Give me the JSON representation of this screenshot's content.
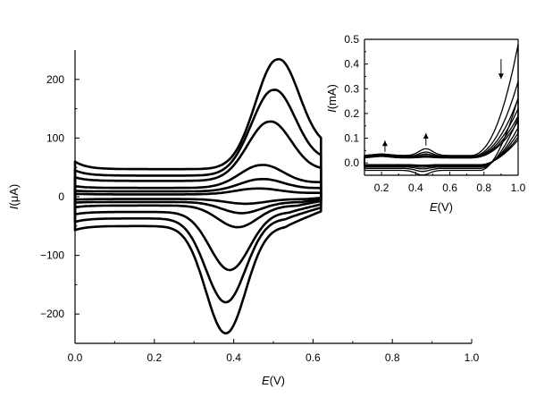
{
  "chart_data": [
    {
      "id": "main",
      "type": "line",
      "title": "",
      "xlabel_italic": "E",
      "xlabel_unit": "(V)",
      "ylabel_italic": "I",
      "ylabel_unit": "(μA)",
      "xlim": [
        0.0,
        1.0
      ],
      "ylim": [
        -250,
        250
      ],
      "x_ticks": [
        "0.0",
        "0.2",
        "0.4",
        "0.6",
        "0.8",
        "1.0"
      ],
      "x_tick_values": [
        0.0,
        0.2,
        0.4,
        0.6,
        0.8,
        1.0
      ],
      "y_ticks": [
        "200",
        "100",
        "0",
        "−100",
        "−200"
      ],
      "y_tick_values": [
        200,
        100,
        0,
        -100,
        -200
      ],
      "grid": false,
      "legend": "none",
      "x_range_scanned": [
        0.0,
        0.62
      ],
      "cycles": [
        {
          "base_top": 60,
          "top_plateau": 47,
          "ox_peak": 234,
          "ox_peak_e": 0.51,
          "base_bottom": -57,
          "bot_plateau": -50,
          "red_peak": -233,
          "red_peak_e": 0.38
        },
        {
          "base_top": 45,
          "top_plateau": 36,
          "ox_peak": 182,
          "ox_peak_e": 0.5,
          "base_bottom": -43,
          "bot_plateau": -37,
          "red_peak": -180,
          "red_peak_e": 0.38
        },
        {
          "base_top": 33,
          "top_plateau": 27,
          "ox_peak": 128,
          "ox_peak_e": 0.49,
          "base_bottom": -30,
          "bot_plateau": -26,
          "red_peak": -125,
          "red_peak_e": 0.39
        },
        {
          "base_top": 18,
          "top_plateau": 15,
          "ox_peak": 54,
          "ox_peak_e": 0.47,
          "base_bottom": -18,
          "bot_plateau": -15,
          "red_peak": -52,
          "red_peak_e": 0.41
        },
        {
          "base_top": 10,
          "top_plateau": 9,
          "ox_peak": 30,
          "ox_peak_e": 0.47,
          "base_bottom": -10,
          "bot_plateau": -9,
          "red_peak": -28,
          "red_peak_e": 0.42
        },
        {
          "base_top": 5,
          "top_plateau": 4,
          "ox_peak": 14,
          "ox_peak_e": 0.46,
          "base_bottom": -5,
          "bot_plateau": -4,
          "red_peak": -12,
          "red_peak_e": 0.43
        }
      ]
    },
    {
      "id": "inset",
      "type": "line",
      "title": "",
      "xlabel_italic": "E",
      "xlabel_unit": "(V)",
      "ylabel_italic": "I",
      "ylabel_unit": "(mA)",
      "xlim": [
        0.1,
        1.0
      ],
      "ylim": [
        -0.05,
        0.5
      ],
      "x_ticks": [
        "0.2",
        "0.4",
        "0.6",
        "0.8",
        "1.0"
      ],
      "x_tick_values": [
        0.2,
        0.4,
        0.6,
        0.8,
        1.0
      ],
      "y_ticks": [
        "0.5",
        "0.4",
        "0.3",
        "0.2",
        "0.1",
        "0.0"
      ],
      "y_tick_values": [
        0.5,
        0.4,
        0.3,
        0.2,
        0.1,
        0.0
      ],
      "grid": false,
      "legend": "none",
      "x_range_scanned": [
        0.1,
        1.0
      ],
      "cycles": [
        {
          "end_current": 0.48,
          "base_top": 0.03,
          "base_bottom": -0.03,
          "peak": 0.027
        },
        {
          "end_current": 0.33,
          "base_top": 0.026,
          "base_bottom": -0.022,
          "peak": 0.018
        },
        {
          "end_current": 0.26,
          "base_top": 0.024,
          "base_bottom": -0.016,
          "peak": 0.012
        },
        {
          "end_current": 0.22,
          "base_top": 0.022,
          "base_bottom": -0.012,
          "peak": 0.008
        },
        {
          "end_current": 0.19,
          "base_top": 0.021,
          "base_bottom": -0.009,
          "peak": 0.005
        },
        {
          "end_current": 0.17,
          "base_top": 0.02,
          "base_bottom": -0.007,
          "peak": 0.003
        }
      ],
      "arrows": [
        {
          "direction": "up",
          "x": 0.22,
          "y_from": 0.045,
          "y_to": 0.09
        },
        {
          "direction": "up",
          "x": 0.46,
          "y_from": 0.07,
          "y_to": 0.12
        },
        {
          "direction": "down",
          "x": 0.9,
          "y_from": 0.42,
          "y_to": 0.34
        }
      ]
    }
  ]
}
